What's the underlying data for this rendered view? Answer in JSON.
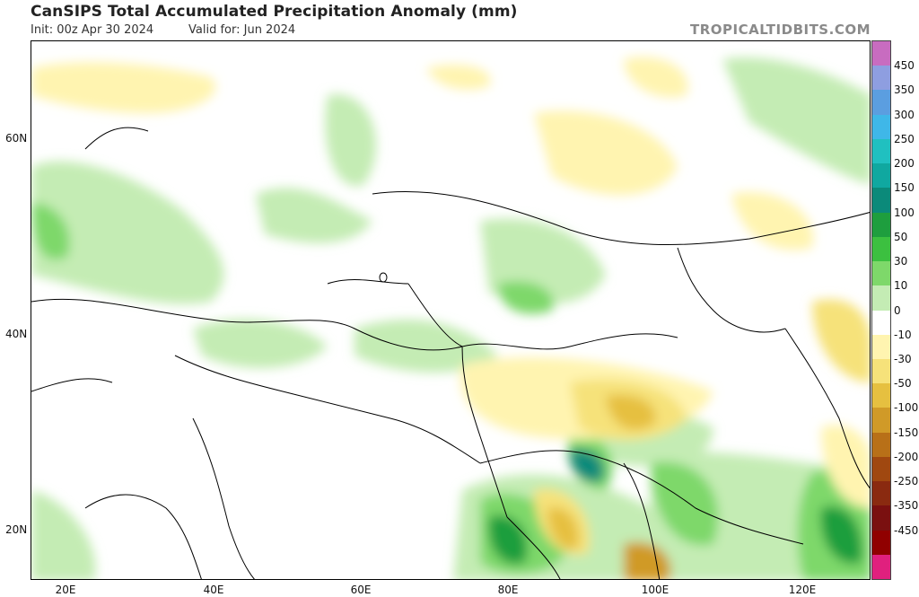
{
  "header": {
    "title": "CanSIPS Total Accumulated Precipitation Anomaly (mm)",
    "init": "Init: 00z Apr 30 2024",
    "valid": "Valid for: Jun 2024",
    "brand": "TROPICALTIDBITS.COM"
  },
  "axes": {
    "lat_labels": [
      "60N",
      "40N",
      "20N"
    ],
    "lon_labels": [
      "20E",
      "40E",
      "60E",
      "80E",
      "100E",
      "120E"
    ]
  },
  "colorbar": {
    "labels": [
      "450",
      "350",
      "300",
      "250",
      "200",
      "150",
      "100",
      "50",
      "30",
      "10",
      "0",
      "-10",
      "-30",
      "-50",
      "-100",
      "-150",
      "-200",
      "-250",
      "-350",
      "-450"
    ],
    "colors": [
      "#c86cc0",
      "#8e9ee0",
      "#5b9ee0",
      "#3fb7e8",
      "#20c0c0",
      "#10a8a0",
      "#0b8a7a",
      "#1e9e3e",
      "#3cc040",
      "#7ed86a",
      "#c4ecb4",
      "#ffffff",
      "#fff4b0",
      "#f6e27a",
      "#e6c040",
      "#d09a28",
      "#b87018",
      "#a04810",
      "#8a2a10",
      "#7a1010",
      "#900000",
      "#e0207e"
    ]
  }
}
